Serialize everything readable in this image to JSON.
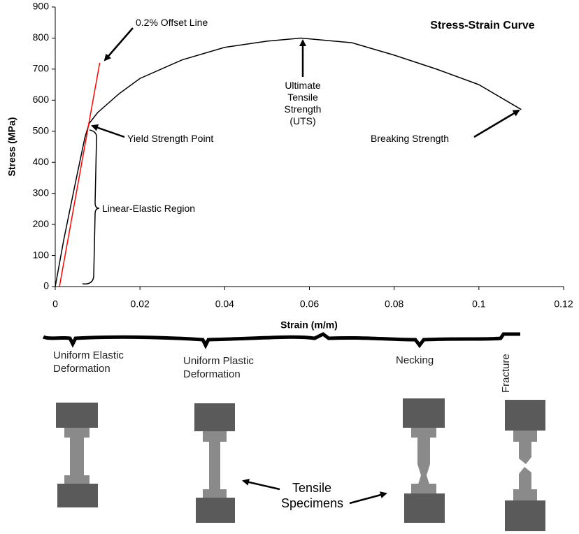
{
  "chart_data": {
    "type": "line",
    "title": "Stress-Strain Curve",
    "x_label": "Strain (m/m)",
    "y_label": "Stress (MPa)",
    "xlim": [
      0,
      0.12
    ],
    "xticks": [
      0,
      0.02,
      0.04,
      0.06,
      0.08,
      0.1,
      0.12
    ],
    "ylim": [
      0,
      900
    ],
    "yticks": [
      0,
      100,
      200,
      300,
      400,
      500,
      600,
      700,
      800,
      900
    ],
    "grid": false,
    "series": [
      {
        "color": "#000000",
        "x": [
          0,
          0.002,
          0.005,
          0.007,
          0.008,
          0.01,
          0.015,
          0.02,
          0.03,
          0.04,
          0.05,
          0.058,
          0.07,
          0.08,
          0.09,
          0.1,
          0.11
        ],
        "values": [
          0,
          150,
          350,
          480,
          525,
          560,
          620,
          670,
          730,
          770,
          790,
          800,
          785,
          745,
          700,
          650,
          570
        ]
      },
      {
        "color": "#ff0000",
        "x": [
          0.001,
          0.0105
        ],
        "values": [
          0,
          720
        ]
      }
    ],
    "annotations": [
      "0.2% Offset Line",
      "Yield Strength Point",
      "Linear-Elastic Region",
      "Ultimate Tensile Strength (UTS)",
      "Breaking Strength"
    ]
  },
  "stages": [
    "Uniform Elastic Deformation",
    "Uniform Plastic Deformation",
    "Necking",
    "Fracture"
  ],
  "specimen_label": "Tensile Specimens"
}
